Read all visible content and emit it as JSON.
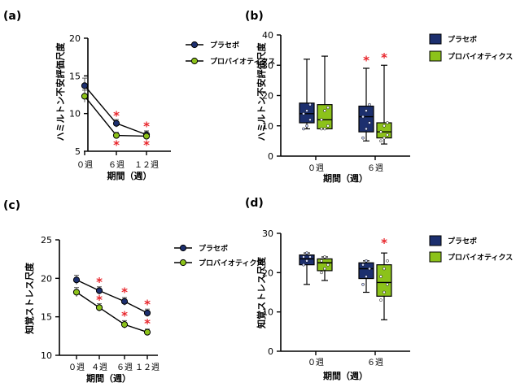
{
  "colors": {
    "placebo": "#1c2f6e",
    "probiotics": "#8cc21a",
    "star": "#e8262c",
    "axis": "#000000"
  },
  "chart_data": [
    {
      "panel": "(a)",
      "type": "line",
      "ylabel": "ハミルトン不安評価尺度",
      "xlabel": "期間（週）",
      "categories": [
        "０週",
        "６週",
        "１２週"
      ],
      "yticks": [
        5,
        10,
        15,
        20
      ],
      "ylim": [
        5,
        20
      ],
      "legend_position": "right",
      "series": [
        {
          "name": "プラセボ",
          "values": [
            13.7,
            8.7,
            7.2
          ],
          "errors": [
            1.0,
            0.5,
            0.5
          ]
        },
        {
          "name": "プロバイオティクス",
          "values": [
            12.3,
            7.1,
            7.0
          ],
          "errors": [
            0.8,
            0.4,
            0.4
          ]
        }
      ],
      "significance": [
        {
          "x": "６週",
          "y": 9.7,
          "label": "*"
        },
        {
          "x": "６週",
          "y": 5.8,
          "label": "*"
        },
        {
          "x": "１２週",
          "y": 8.3,
          "label": "*"
        },
        {
          "x": "１２週",
          "y": 5.8,
          "label": "*"
        }
      ]
    },
    {
      "panel": "(b)",
      "type": "box",
      "ylabel": "ハミルトン不安評価尺度",
      "xlabel": "期間（週）",
      "categories": [
        "０週",
        "６週"
      ],
      "yticks": [
        0,
        10,
        20,
        30,
        40
      ],
      "ylim": [
        0,
        40
      ],
      "legend_position": "right",
      "series": [
        {
          "name": "プラセボ",
          "boxes": [
            {
              "min": 9,
              "q1": 11,
              "median": 14,
              "q3": 17.5,
              "max": 32,
              "points": [
                9,
                10,
                12,
                14,
                15,
                17
              ]
            },
            {
              "min": 5,
              "q1": 8,
              "median": 13,
              "q3": 16.5,
              "max": 29,
              "points": [
                6,
                9,
                11,
                13,
                15,
                17
              ]
            }
          ]
        },
        {
          "name": "プロバイオティクス",
          "boxes": [
            {
              "min": 9,
              "q1": 9,
              "median": 12,
              "q3": 17,
              "max": 33,
              "points": [
                9,
                9,
                10,
                12,
                15,
                16
              ]
            },
            {
              "min": 4,
              "q1": 6,
              "median": 8,
              "q3": 11,
              "max": 30,
              "points": [
                5,
                6,
                7,
                8,
                10,
                11
              ]
            }
          ]
        }
      ],
      "significance": [
        {
          "x": "６週",
          "series": "プラセボ",
          "y": 31.5,
          "label": "*"
        },
        {
          "x": "６週",
          "series": "プロバイオティクス",
          "y": 32.5,
          "label": "*"
        }
      ]
    },
    {
      "panel": "(c)",
      "type": "line",
      "ylabel": "知覚ストレス尺度",
      "xlabel": "期間（週）",
      "categories": [
        "０週",
        "４週",
        "６週",
        "１２週"
      ],
      "yticks": [
        10,
        15,
        20,
        25
      ],
      "ylim": [
        10,
        25
      ],
      "legend_position": "right",
      "series": [
        {
          "name": "プラセボ",
          "values": [
            19.8,
            18.4,
            17.0,
            15.5
          ],
          "errors": [
            0.6,
            0.5,
            0.5,
            0.5
          ]
        },
        {
          "name": "プロバイオティクス",
          "values": [
            18.2,
            16.2,
            14.0,
            13.0
          ],
          "errors": [
            0.6,
            0.5,
            0.5,
            0.4
          ]
        }
      ],
      "significance": [
        {
          "x": "４週",
          "y": 19.5,
          "label": "*"
        },
        {
          "x": "４週",
          "y": 17.2,
          "label": "*"
        },
        {
          "x": "６週",
          "y": 18.2,
          "label": "*"
        },
        {
          "x": "６週",
          "y": 15.1,
          "label": "*"
        },
        {
          "x": "１２週",
          "y": 16.6,
          "label": "*"
        },
        {
          "x": "１２週",
          "y": 14.1,
          "label": "*"
        }
      ]
    },
    {
      "panel": "(d)",
      "type": "box",
      "ylabel": "知覚ストレス尺度",
      "xlabel": "期間（週）",
      "categories": [
        "０週",
        "６週"
      ],
      "yticks": [
        0,
        10,
        20,
        30
      ],
      "ylim": [
        0,
        30
      ],
      "legend_position": "right",
      "series": [
        {
          "name": "プラセボ",
          "boxes": [
            {
              "min": 17,
              "q1": 22,
              "median": 23.5,
              "q3": 24.5,
              "max": 25,
              "points": [
                22,
                23,
                24,
                24,
                25
              ]
            },
            {
              "min": 15,
              "q1": 18.5,
              "median": 21,
              "q3": 22.5,
              "max": 23,
              "points": [
                17,
                19,
                21,
                22,
                23
              ]
            }
          ]
        },
        {
          "name": "プロバイオティクス",
          "boxes": [
            {
              "min": 18,
              "q1": 20.5,
              "median": 22.5,
              "q3": 23.5,
              "max": 24,
              "points": [
                20,
                21,
                22,
                23,
                24
              ]
            },
            {
              "min": 8,
              "q1": 14,
              "median": 17.5,
              "q3": 22,
              "max": 25,
              "points": [
                13,
                15,
                17,
                19,
                21,
                23
              ]
            }
          ]
        }
      ],
      "significance": [
        {
          "x": "６週",
          "series": "プロバイオティクス",
          "y": 27.5,
          "label": "*"
        }
      ]
    }
  ]
}
